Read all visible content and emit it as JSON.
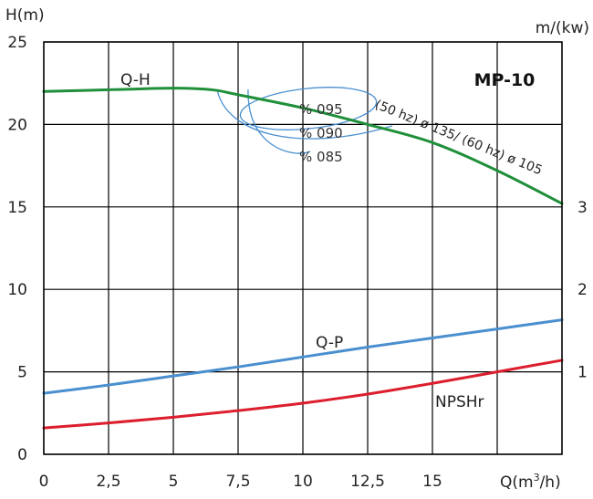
{
  "chart_data": {
    "type": "line",
    "model": "MP-10",
    "y_title": "H(m)",
    "y2_title": "m/(kw)",
    "x_title_html": "Q(m³/h)",
    "x_ticks": [
      {
        "value": 0,
        "label": "0"
      },
      {
        "value": 2.5,
        "label": "2,5"
      },
      {
        "value": 5,
        "label": "5"
      },
      {
        "value": 7.5,
        "label": "7,5"
      },
      {
        "value": 10,
        "label": "10"
      },
      {
        "value": 12.5,
        "label": "12,5"
      },
      {
        "value": 15,
        "label": "15"
      },
      {
        "value": 17.5,
        "label": ""
      },
      {
        "value": 20,
        "label": ""
      }
    ],
    "y_ticks": [
      {
        "value": 0,
        "label": "0"
      },
      {
        "value": 5,
        "label": "5"
      },
      {
        "value": 10,
        "label": "10"
      },
      {
        "value": 15,
        "label": "15"
      },
      {
        "value": 20,
        "label": "20"
      },
      {
        "value": 25,
        "label": "25"
      }
    ],
    "y2_ticks": [
      {
        "value": 1,
        "label": "1"
      },
      {
        "value": 2,
        "label": "2"
      },
      {
        "value": 3,
        "label": "3"
      }
    ],
    "xlim": [
      0,
      20
    ],
    "ylim": [
      0,
      25
    ],
    "y2_lim": [
      0,
      5
    ],
    "grid": true,
    "series": [
      {
        "name": "Q-H",
        "color": "#1f8f3a",
        "axis": "left",
        "x": [
          0,
          2.5,
          5,
          6.5,
          7.5,
          10,
          12.5,
          15,
          17.5,
          20
        ],
        "y": [
          22,
          22.1,
          22.2,
          22.1,
          21.8,
          21,
          20,
          18.9,
          17.2,
          15.2
        ]
      },
      {
        "name": "Q-P",
        "color": "#4a8fd0",
        "axis": "right",
        "x": [
          0,
          2.5,
          5,
          7.5,
          10,
          12.5,
          15,
          17.5,
          20
        ],
        "y": [
          0.74,
          0.84,
          0.95,
          1.06,
          1.18,
          1.3,
          1.41,
          1.52,
          1.63
        ]
      },
      {
        "name": "NPSHr",
        "color": "#dc1e2e",
        "axis": "left",
        "x": [
          0,
          2.5,
          5,
          7.5,
          10,
          12.5,
          15,
          17.5,
          20
        ],
        "y": [
          1.6,
          1.9,
          2.25,
          2.65,
          3.1,
          3.65,
          4.3,
          5.0,
          5.7
        ]
      }
    ],
    "efficiency_labels": [
      "% 095",
      "% 090",
      "% 085"
    ],
    "impeller_label": "(50 hz) ø 135/ (60 hz) ø 105"
  }
}
